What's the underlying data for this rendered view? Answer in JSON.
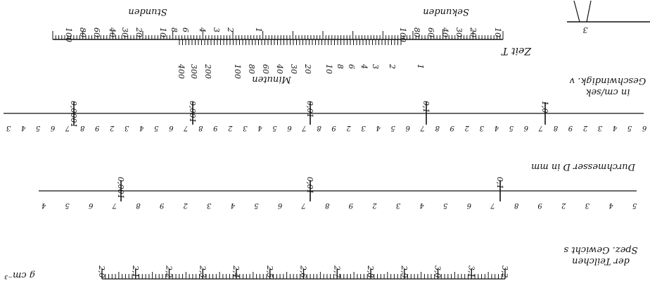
{
  "colors": {
    "ink": "#111111",
    "paper": "#ffffff"
  },
  "scales": {
    "time": {
      "title": "Zeit T",
      "unit_hours": "Stunden",
      "unit_seconds": "Sekunden",
      "unit_minutes": "Minuten",
      "hour_labels": [
        "100",
        "80",
        "60",
        "40",
        "30",
        "20",
        "10",
        "8",
        "6",
        "4",
        "3",
        "2",
        "1"
      ],
      "second_labels": [
        "100",
        "80",
        "60",
        "40",
        "30",
        "20",
        "10"
      ],
      "minute_labels": [
        "400",
        "300",
        "200",
        "100",
        "80",
        "60",
        "40",
        "30",
        "20",
        "10",
        "8",
        "6",
        "4",
        "3",
        "2",
        "1"
      ]
    },
    "velocity": {
      "title_line1": "Geschwindigk. v",
      "title_line2": "in cm/sek",
      "decade_labels": [
        "0,0001",
        "0,001",
        "0,01",
        "0,1",
        "1,0"
      ],
      "digits": [
        "3",
        "4",
        "5",
        "6",
        "7",
        "8",
        "9",
        "2",
        "3",
        "4",
        "5",
        "6",
        "7",
        "8",
        "9",
        "2",
        "3",
        "4",
        "5",
        "6",
        "7",
        "8",
        "9",
        "2",
        "3",
        "4",
        "5",
        "6",
        "7",
        "8",
        "9",
        "2",
        "3",
        "4",
        "5",
        "6",
        "7",
        "8",
        "9",
        "2",
        "3",
        "4",
        "5",
        "6"
      ]
    },
    "diameter": {
      "title": "Durchmesser D in mm",
      "decade_labels": [
        "0,001",
        "0,01",
        "0,1"
      ],
      "digits": [
        "4",
        "5",
        "6",
        "7",
        "8",
        "9",
        "2",
        "3",
        "4",
        "5",
        "6",
        "7",
        "8",
        "9",
        "2",
        "3",
        "4",
        "5",
        "6",
        "7",
        "8",
        "9",
        "2",
        "3",
        "4",
        "5"
      ]
    },
    "density": {
      "title_line1": "Spez. Gewicht s",
      "title_line2": "der Teilchen",
      "unit": "g cm⁻³",
      "labels": [
        "2,0",
        "2,1",
        "2,2",
        "2,3",
        "2,4",
        "2,5",
        "2,6",
        "2,7",
        "2,8",
        "2,9",
        "3,0",
        "3,1",
        "3,2"
      ]
    },
    "corner_mark": "3"
  }
}
